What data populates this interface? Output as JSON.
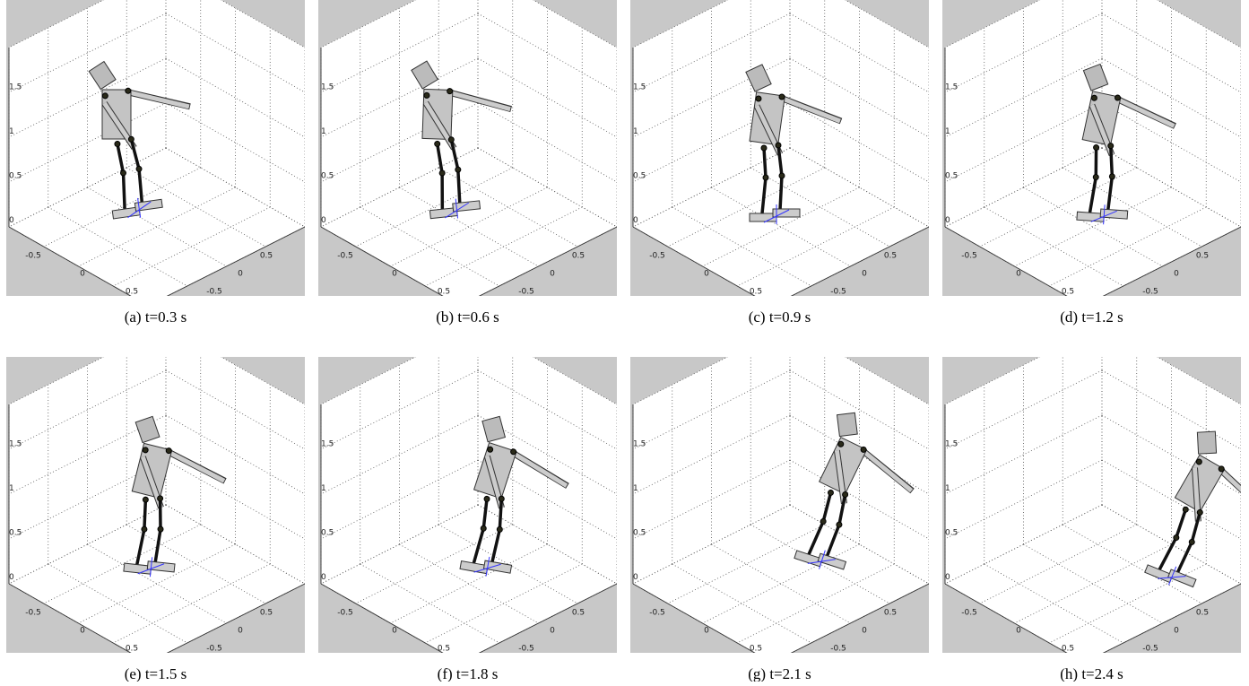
{
  "figure": {
    "axis_ticks": {
      "z": [
        "1.5",
        "1",
        "0.5",
        "0"
      ],
      "x": [
        "-0.5",
        "0",
        "0.5"
      ],
      "y": [
        "0.5",
        "0",
        "-0.5"
      ]
    },
    "panels": [
      {
        "caption": "(a) t=0.3 s"
      },
      {
        "caption": "(b) t=0.6 s"
      },
      {
        "caption": "(c) t=0.9 s"
      },
      {
        "caption": "(d) t=1.2 s"
      },
      {
        "caption": "(e) t=1.5 s"
      },
      {
        "caption": "(f) t=1.8 s"
      },
      {
        "caption": "(g) t=2.1 s"
      },
      {
        "caption": "(h) t=2.4 s"
      }
    ]
  }
}
